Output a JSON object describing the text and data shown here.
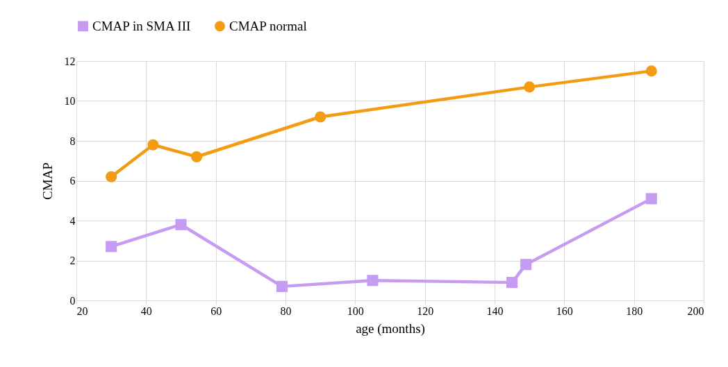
{
  "chart_data": {
    "type": "line",
    "xlabel": "age (months)",
    "ylabel": "CMAP",
    "xlim": [
      20,
      200
    ],
    "xticks": [
      20,
      40,
      60,
      80,
      100,
      120,
      140,
      160,
      180,
      200
    ],
    "ylim": [
      0,
      12
    ],
    "yticks": [
      0,
      2,
      4,
      6,
      8,
      10,
      12
    ],
    "grid": true,
    "legend": "top",
    "line_style": "solid",
    "series": [
      {
        "name": "CMAP in SMA III",
        "color": "#c59cf2",
        "marker": "square",
        "x": [
          30,
          50,
          79,
          105,
          145,
          149,
          185
        ],
        "values": [
          2.7,
          3.8,
          0.7,
          1.0,
          0.9,
          1.8,
          5.1
        ]
      },
      {
        "name": "CMAP normal",
        "color": "#f39c12",
        "marker": "circle",
        "x": [
          30,
          42,
          54.5,
          90,
          150,
          185
        ],
        "values": [
          6.2,
          7.8,
          7.2,
          9.2,
          10.7,
          11.5
        ]
      }
    ]
  }
}
